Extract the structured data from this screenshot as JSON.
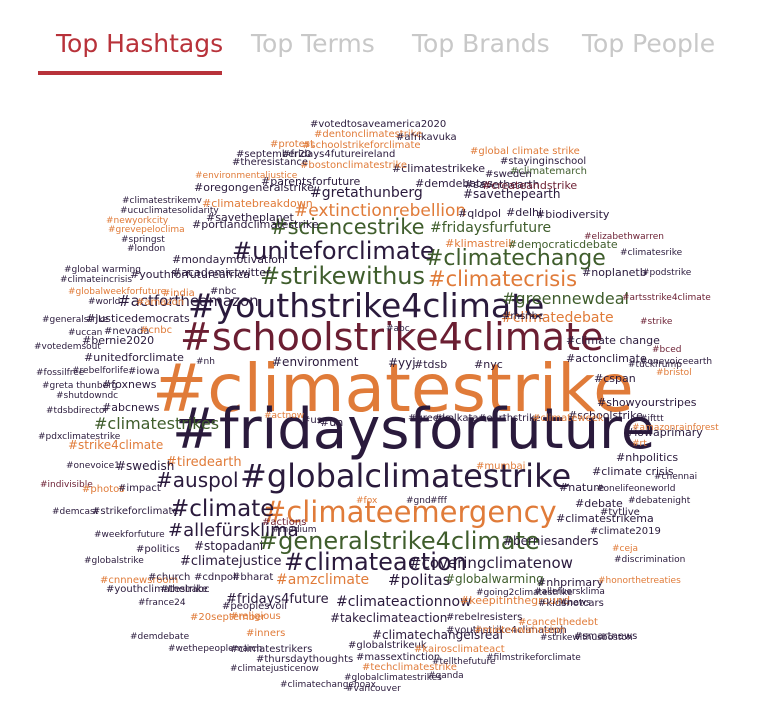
{
  "tabs": [
    {
      "label": "Top Hashtags",
      "active": true
    },
    {
      "label": "Top Terms",
      "active": false
    },
    {
      "label": "Top Brands",
      "active": false
    },
    {
      "label": "Top People",
      "active": false
    }
  ],
  "colors": {
    "orange": "#e07b39",
    "dark": "#2a1a3c",
    "green": "#3f5d2c",
    "maroon": "#6b1e32",
    "accent": "#b8323a"
  },
  "words": [
    {
      "text": "#climatestrike",
      "c": "orange"
    },
    {
      "text": "#fridaysforfuture",
      "c": "dark"
    },
    {
      "text": "#schoolstrike4climate",
      "c": "maroon"
    },
    {
      "text": "#globalclimatestrike",
      "c": "dark"
    },
    {
      "text": "#youthstrike4climate",
      "c": "dark"
    },
    {
      "text": "#climateemergency",
      "c": "orange"
    },
    {
      "text": "#generalstrike4climate",
      "c": "green"
    },
    {
      "text": "#strikewithus",
      "c": "green"
    },
    {
      "text": "#uniteforclimate",
      "c": "dark"
    },
    {
      "text": "#climatechange",
      "c": "green"
    },
    {
      "text": "#sciencestrike",
      "c": "green"
    },
    {
      "text": "#climatecrisis",
      "c": "orange"
    },
    {
      "text": "#climateaction",
      "c": "dark"
    },
    {
      "text": "#climate",
      "c": "dark"
    },
    {
      "text": "#auspol",
      "c": "dark"
    },
    {
      "text": "#extinctionrebellion",
      "c": "orange"
    },
    {
      "text": "#allefürsklima",
      "c": "dark"
    },
    {
      "text": "#climatestrikes",
      "c": "green"
    },
    {
      "text": "#greennewdeal",
      "c": "green"
    },
    {
      "text": "#gretathunberg",
      "c": "dark"
    },
    {
      "text": "#fridaysfurfuture",
      "c": "green"
    },
    {
      "text": "#actfortheamazon",
      "c": "dark"
    },
    {
      "text": "#climatedebate",
      "c": "orange"
    },
    {
      "text": "#politas",
      "c": "dark"
    },
    {
      "text": "#amzclimate",
      "c": "orange"
    },
    {
      "text": "#coveringclimatenow",
      "c": "dark"
    },
    {
      "text": "#climateactionnow",
      "c": "dark"
    },
    {
      "text": "#fridays4future",
      "c": "dark"
    },
    {
      "text": "#climatejustice",
      "c": "dark"
    },
    {
      "text": "#takeclimateaction",
      "c": "dark"
    },
    {
      "text": "#globalwarming",
      "c": "green"
    },
    {
      "text": "#environment",
      "c": "dark"
    },
    {
      "text": "#schoolstrike",
      "c": "dark"
    },
    {
      "text": "#showyourstripes",
      "c": "dark"
    },
    {
      "text": "#tiredearth",
      "c": "orange"
    },
    {
      "text": "#swedish",
      "c": "dark"
    },
    {
      "text": "#stopadani",
      "c": "dark"
    },
    {
      "text": "#berniesanders",
      "c": "dark"
    },
    {
      "text": "#actonclimate",
      "c": "dark"
    },
    {
      "text": "#climatechangeisreal",
      "c": "dark"
    },
    {
      "text": "#debate",
      "c": "dark"
    },
    {
      "text": "#nature",
      "c": "dark"
    },
    {
      "text": "#strike4climate",
      "c": "orange"
    },
    {
      "text": "#keepitintheground",
      "c": "orange"
    },
    {
      "text": "#youthforfutureafrica",
      "c": "dark"
    },
    {
      "text": "#savethepearth",
      "c": "dark"
    },
    {
      "text": "#bernie2020",
      "c": "dark"
    },
    {
      "text": "#justicedemocrats",
      "c": "dark"
    },
    {
      "text": "#unitedforclimate",
      "c": "dark"
    },
    {
      "text": "#foxnews",
      "c": "dark"
    },
    {
      "text": "#abcnews",
      "c": "dark"
    },
    {
      "text": "#climate change",
      "c": "dark"
    },
    {
      "text": "#iowaprimary",
      "c": "dark"
    },
    {
      "text": "#cspan",
      "c": "dark"
    },
    {
      "text": "#nhpolitics",
      "c": "dark"
    },
    {
      "text": "#climate crisis",
      "c": "dark"
    },
    {
      "text": "#nhprimary",
      "c": "dark"
    },
    {
      "text": "#mondaymotivation",
      "c": "dark"
    },
    {
      "text": "#academictwitter",
      "c": "dark"
    },
    {
      "text": "#savetheplanet",
      "c": "dark"
    },
    {
      "text": "#climatebreakdown",
      "c": "orange"
    },
    {
      "text": "#klimastreik",
      "c": "orange"
    },
    {
      "text": "#democraticdebate",
      "c": "green"
    },
    {
      "text": "#qldpol",
      "c": "dark"
    },
    {
      "text": "#delhi",
      "c": "dark"
    },
    {
      "text": "#biodiversity",
      "c": "dark"
    },
    {
      "text": "#noplanetb",
      "c": "dark"
    },
    {
      "text": "#parentsforfuture",
      "c": "dark"
    },
    {
      "text": "#oregongeneralstrike",
      "c": "dark"
    },
    {
      "text": "#portlandclimatestrike",
      "c": "dark"
    },
    {
      "text": "#demdebates",
      "c": "dark"
    },
    {
      "text": "#climatestrikeke",
      "c": "dark"
    },
    {
      "text": "#savethearth",
      "c": "dark"
    },
    {
      "text": "#createandstrike",
      "c": "maroon"
    },
    {
      "text": "#climatemarch",
      "c": "green"
    },
    {
      "text": "#sweden",
      "c": "dark"
    },
    {
      "text": "#fridays4futureireland",
      "c": "dark"
    },
    {
      "text": "#schoolstrikeforclimate",
      "c": "orange"
    },
    {
      "text": "#bostonclimatestrike",
      "c": "orange"
    },
    {
      "text": "#theresistance",
      "c": "dark"
    },
    {
      "text": "#september20",
      "c": "dark"
    },
    {
      "text": "#protest",
      "c": "orange"
    },
    {
      "text": "#dentonclimatestrike",
      "c": "orange"
    },
    {
      "text": "#votedtosaveamerica2020",
      "c": "dark"
    },
    {
      "text": "#afrikavuka",
      "c": "dark"
    },
    {
      "text": "#global climate strike",
      "c": "orange"
    },
    {
      "text": "#stayinginschool",
      "c": "dark"
    },
    {
      "text": "#environmentaljustice",
      "c": "orange"
    },
    {
      "text": "#climatestrikemv",
      "c": "dark"
    },
    {
      "text": "#ucuclimatesolidarity",
      "c": "dark"
    },
    {
      "text": "#newyorkcity",
      "c": "orange"
    },
    {
      "text": "#grevepeloclima",
      "c": "orange"
    },
    {
      "text": "#springst",
      "c": "dark"
    },
    {
      "text": "#london",
      "c": "dark"
    },
    {
      "text": "#global warming",
      "c": "dark"
    },
    {
      "text": "#climateincrisis",
      "c": "dark"
    },
    {
      "text": "#globalweekforfuture",
      "c": "orange"
    },
    {
      "text": "#india",
      "c": "orange"
    },
    {
      "text": "#nbc",
      "c": "dark"
    },
    {
      "text": "#world",
      "c": "dark"
    },
    {
      "text": "#amazon",
      "c": "orange"
    },
    {
      "text": "#generalstrike",
      "c": "dark"
    },
    {
      "text": "#uccan",
      "c": "dark"
    },
    {
      "text": "#nevada",
      "c": "dark"
    },
    {
      "text": "#cnbc",
      "c": "orange"
    },
    {
      "text": "#votedemsout",
      "c": "dark"
    },
    {
      "text": "#rebelforlife",
      "c": "dark"
    },
    {
      "text": "#iowa",
      "c": "dark"
    },
    {
      "text": "#fossilfree",
      "c": "dark"
    },
    {
      "text": "#greta thunberg",
      "c": "dark"
    },
    {
      "text": "#shutdowndc",
      "c": "dark"
    },
    {
      "text": "#tdsbdirector",
      "c": "dark"
    },
    {
      "text": "#pdxclimatestrike",
      "c": "dark"
    },
    {
      "text": "#onevoice1",
      "c": "dark"
    },
    {
      "text": "#indivisible",
      "c": "maroon"
    },
    {
      "text": "#photos",
      "c": "orange"
    },
    {
      "text": "#impact",
      "c": "dark"
    },
    {
      "text": "#demcast",
      "c": "dark"
    },
    {
      "text": "#strikeforclimate",
      "c": "dark"
    },
    {
      "text": "#weekforfuture",
      "c": "dark"
    },
    {
      "text": "#politics",
      "c": "dark"
    },
    {
      "text": "#globalstrike",
      "c": "dark"
    },
    {
      "text": "#cnnnewsroom",
      "c": "orange"
    },
    {
      "text": "#church",
      "c": "dark"
    },
    {
      "text": "#cdnpoli",
      "c": "dark"
    },
    {
      "text": "#bharat",
      "c": "dark"
    },
    {
      "text": "#youthclimatestrike",
      "c": "dark"
    },
    {
      "text": "#theirabc",
      "c": "dark"
    },
    {
      "text": "#france24",
      "c": "dark"
    },
    {
      "text": "#religious",
      "c": "orange"
    },
    {
      "text": "#20september",
      "c": "orange"
    },
    {
      "text": "#peoplesvoil",
      "c": "dark"
    },
    {
      "text": "#inners",
      "c": "orange"
    },
    {
      "text": "#demdebate",
      "c": "dark"
    },
    {
      "text": "#wethepeoplemarch",
      "c": "dark"
    },
    {
      "text": "#climatestrikers",
      "c": "dark"
    },
    {
      "text": "#thursdaythoughts",
      "c": "dark"
    },
    {
      "text": "#climatejusticenow",
      "c": "dark"
    },
    {
      "text": "#climatechangehoax",
      "c": "dark"
    },
    {
      "text": "#globalstrikeuk",
      "c": "dark"
    },
    {
      "text": "#massextinction",
      "c": "dark"
    },
    {
      "text": "#techclimatestrike",
      "c": "orange"
    },
    {
      "text": "#globalclimatestrikes",
      "c": "dark"
    },
    {
      "text": "#vancouver",
      "c": "dark"
    },
    {
      "text": "#kairosclimateact",
      "c": "orange"
    },
    {
      "text": "#tellthefuture",
      "c": "dark"
    },
    {
      "text": "#qanda",
      "c": "dark"
    },
    {
      "text": "#filmstrikeforclimate",
      "c": "dark"
    },
    {
      "text": "#youthstrike4climateph",
      "c": "dark"
    },
    {
      "text": "#mietenwahnsinn",
      "c": "orange"
    },
    {
      "text": "#strikewithusboston",
      "c": "dark"
    },
    {
      "text": "#smartnews",
      "c": "dark"
    },
    {
      "text": "#cancelthedebt",
      "c": "orange"
    },
    {
      "text": "#kidsnotcars",
      "c": "dark"
    },
    {
      "text": "#rebelresisters",
      "c": "dark"
    },
    {
      "text": "#allefuersklima",
      "c": "dark"
    },
    {
      "text": "#news",
      "c": "dark"
    },
    {
      "text": "#going2climatestrike",
      "c": "dark"
    },
    {
      "text": "#honorthetreaties",
      "c": "orange"
    },
    {
      "text": "#ceja",
      "c": "orange"
    },
    {
      "text": "#discrimination",
      "c": "dark"
    },
    {
      "text": "#climate2019",
      "c": "dark"
    },
    {
      "text": "#climatestrikema",
      "c": "dark"
    },
    {
      "text": "#debatenight",
      "c": "dark"
    },
    {
      "text": "#tytlive",
      "c": "dark"
    },
    {
      "text": "#onelifeoneworld",
      "c": "dark"
    },
    {
      "text": "#chennai",
      "c": "dark"
    },
    {
      "text": "#mumbai",
      "c": "orange"
    },
    {
      "text": "#actions",
      "c": "maroon"
    },
    {
      "text": "#medium",
      "c": "dark"
    },
    {
      "text": "#fox",
      "c": "orange"
    },
    {
      "text": "#gnd",
      "c": "dark"
    },
    {
      "text": "#fff",
      "c": "dark"
    },
    {
      "text": "#rt",
      "c": "orange"
    },
    {
      "text": "#ifttt",
      "c": "dark"
    },
    {
      "text": "#amazonrainforest",
      "c": "orange"
    },
    {
      "text": "#tuckfrump",
      "c": "dark"
    },
    {
      "text": "#bristol",
      "c": "orange"
    },
    {
      "text": "#onevoiceearth",
      "c": "dark"
    },
    {
      "text": "#bced",
      "c": "maroon"
    },
    {
      "text": "#strike",
      "c": "maroon"
    },
    {
      "text": "#artsstrike4climate",
      "c": "maroon"
    },
    {
      "text": "#podstrike",
      "c": "dark"
    },
    {
      "text": "#climatesrike",
      "c": "dark"
    },
    {
      "text": "#elizabethwarren",
      "c": "maroon"
    },
    {
      "text": "#earthstrike",
      "c": "dark"
    },
    {
      "text": "#climateweek",
      "c": "orange"
    },
    {
      "text": "#kolkata",
      "c": "dark"
    },
    {
      "text": "#greens",
      "c": "dark"
    },
    {
      "text": "#un",
      "c": "dark"
    },
    {
      "text": "#us",
      "c": "dark"
    },
    {
      "text": "#actnow",
      "c": "orange"
    },
    {
      "text": "#nh",
      "c": "dark"
    },
    {
      "text": "#yyj",
      "c": "dark"
    },
    {
      "text": "#tdsb",
      "c": "dark"
    },
    {
      "text": "#nyc",
      "c": "dark"
    },
    {
      "text": "#msnbc",
      "c": "dark"
    },
    {
      "text": "#abc",
      "c": "dark"
    },
    {
      "text": "#cnn",
      "c": "dark"
    },
    {
      "text": "#winning",
      "c": "dark"
    }
  ]
}
